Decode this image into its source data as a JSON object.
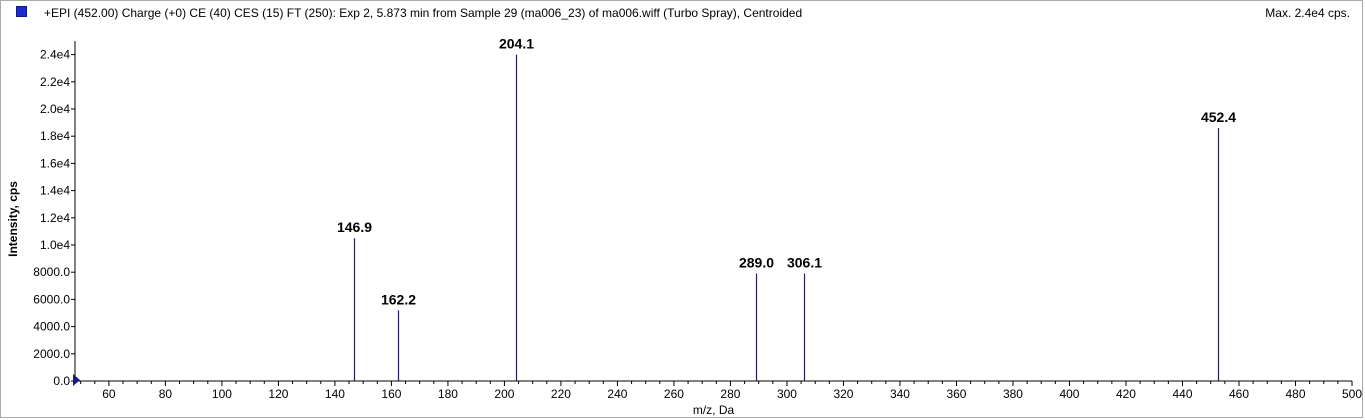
{
  "header": {
    "title": "+EPI (452.00) Charge (+0) CE (40) CES (15) FT (250): Exp 2, 5.873 min from Sample 29 (ma006_23) of ma006.wiff (Turbo Spray), Centroided",
    "max_label": "Max. 2.4e4 cps."
  },
  "colors": {
    "series": "#1a1a80",
    "legend_swatch": "#1b2bd0",
    "axis": "#000000"
  },
  "chart_data": {
    "type": "bar",
    "title": "+EPI (452.00) Charge (+0) CE (40) CES (15) FT (250): Exp 2, 5.873 min from Sample 29 (ma006_23) of ma006.wiff (Turbo Spray), Centroided",
    "xlabel": "m/z, Da",
    "ylabel": "Intensity, cps",
    "xlim": [
      48,
      500
    ],
    "ylim": [
      0,
      25000
    ],
    "x_ticks": [
      60,
      80,
      100,
      120,
      140,
      160,
      180,
      200,
      220,
      240,
      260,
      280,
      300,
      320,
      340,
      360,
      380,
      400,
      420,
      440,
      460,
      480,
      500
    ],
    "y_ticks": [
      {
        "value": 0,
        "label": "0.0"
      },
      {
        "value": 2000,
        "label": "2000.0"
      },
      {
        "value": 4000,
        "label": "4000.0"
      },
      {
        "value": 6000,
        "label": "6000.0"
      },
      {
        "value": 8000,
        "label": "8000.0"
      },
      {
        "value": 10000,
        "label": "1.0e4"
      },
      {
        "value": 12000,
        "label": "1.2e4"
      },
      {
        "value": 14000,
        "label": "1.4e4"
      },
      {
        "value": 16000,
        "label": "1.6e4"
      },
      {
        "value": 18000,
        "label": "1.8e4"
      },
      {
        "value": 20000,
        "label": "2.0e4"
      },
      {
        "value": 22000,
        "label": "2.2e4"
      },
      {
        "value": 24000,
        "label": "2.4e4"
      }
    ],
    "grid": false,
    "peaks": [
      {
        "mz": 146.9,
        "intensity": 10500,
        "label": "146.9"
      },
      {
        "mz": 162.2,
        "intensity": 5200,
        "label": "162.2"
      },
      {
        "mz": 204.1,
        "intensity": 24000,
        "label": "204.1"
      },
      {
        "mz": 289.0,
        "intensity": 7900,
        "label": "289.0"
      },
      {
        "mz": 306.1,
        "intensity": 7900,
        "label": "306.1"
      },
      {
        "mz": 452.4,
        "intensity": 18600,
        "label": "452.4"
      }
    ]
  }
}
